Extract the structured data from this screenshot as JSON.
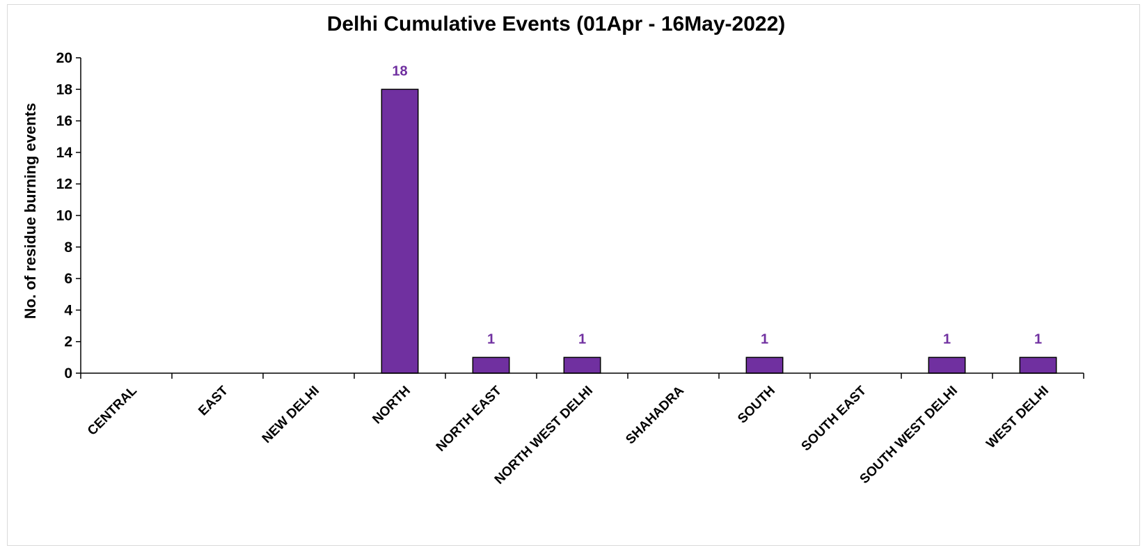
{
  "chart_data": {
    "type": "bar",
    "title": "Delhi Cumulative Events (01Apr - 16May-2022)",
    "xlabel": "",
    "ylabel": "No. of residue burning events",
    "ylim": [
      0,
      20
    ],
    "yticks": [
      "0",
      "2",
      "4",
      "6",
      "8",
      "10",
      "12",
      "14",
      "16",
      "18",
      "20"
    ],
    "categories": [
      "CENTRAL",
      "EAST",
      "NEW DELHI",
      "NORTH",
      "NORTH EAST",
      "NORTH WEST DELHI",
      "SHAHADRA",
      "SOUTH",
      "SOUTH EAST",
      "SOUTH WEST DELHI",
      "WEST DELHI"
    ],
    "values": [
      0,
      0,
      0,
      18,
      1,
      1,
      0,
      1,
      0,
      1,
      1
    ],
    "data_labels": [
      "",
      "",
      "",
      "18",
      "1",
      "1",
      "",
      "1",
      "",
      "1",
      "1"
    ],
    "grid": false,
    "legend": "none",
    "colors": {
      "bar_fill": "#7030A0",
      "bar_stroke": "#000000",
      "data_label": "#7030A0",
      "axis": "#000000"
    }
  }
}
